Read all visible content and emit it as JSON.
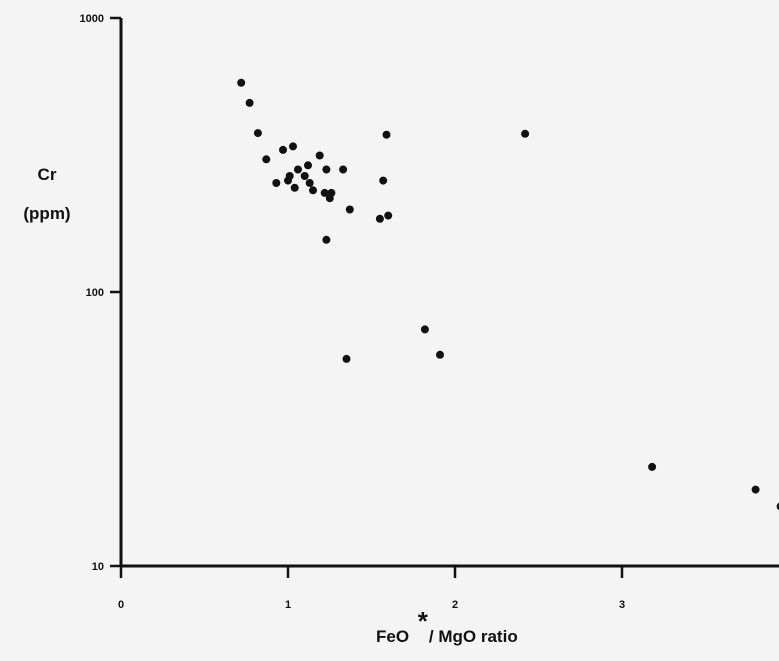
{
  "chart_data": {
    "type": "scatter",
    "ylabel_line1": "Cr",
    "ylabel_line2": "(ppm)",
    "xlabel_pre": "FeO",
    "xlabel_star": "*",
    "xlabel_post": "/ MgO ratio",
    "x_scale": "linear",
    "y_scale": "log",
    "xlim": [
      0,
      3.95
    ],
    "ylim": [
      10,
      1000
    ],
    "x_ticks": [
      {
        "value": 0,
        "label": "0"
      },
      {
        "value": 1,
        "label": "1"
      },
      {
        "value": 2,
        "label": "2"
      },
      {
        "value": 3,
        "label": "3"
      }
    ],
    "y_ticks": [
      {
        "value": 1000,
        "label": "1000"
      },
      {
        "value": 100,
        "label": "100"
      },
      {
        "value": 10,
        "label": "10"
      }
    ],
    "grid": false,
    "legend": "none",
    "marker_color": "#111111",
    "points": [
      {
        "x": 0.72,
        "y": 580
      },
      {
        "x": 0.77,
        "y": 490
      },
      {
        "x": 0.82,
        "y": 380
      },
      {
        "x": 0.87,
        "y": 305
      },
      {
        "x": 0.93,
        "y": 250
      },
      {
        "x": 0.97,
        "y": 330
      },
      {
        "x": 1.0,
        "y": 255
      },
      {
        "x": 1.01,
        "y": 265
      },
      {
        "x": 1.03,
        "y": 340
      },
      {
        "x": 1.04,
        "y": 240
      },
      {
        "x": 1.06,
        "y": 280
      },
      {
        "x": 1.1,
        "y": 265
      },
      {
        "x": 1.12,
        "y": 290
      },
      {
        "x": 1.13,
        "y": 250
      },
      {
        "x": 1.15,
        "y": 235
      },
      {
        "x": 1.19,
        "y": 315
      },
      {
        "x": 1.22,
        "y": 230
      },
      {
        "x": 1.23,
        "y": 280
      },
      {
        "x": 1.23,
        "y": 155
      },
      {
        "x": 1.25,
        "y": 220
      },
      {
        "x": 1.26,
        "y": 230
      },
      {
        "x": 1.33,
        "y": 280
      },
      {
        "x": 1.37,
        "y": 200
      },
      {
        "x": 1.35,
        "y": 57
      },
      {
        "x": 1.55,
        "y": 185
      },
      {
        "x": 1.57,
        "y": 255
      },
      {
        "x": 1.59,
        "y": 375
      },
      {
        "x": 1.6,
        "y": 190
      },
      {
        "x": 1.82,
        "y": 73
      },
      {
        "x": 1.91,
        "y": 59
      },
      {
        "x": 2.42,
        "y": 378
      },
      {
        "x": 3.18,
        "y": 23
      },
      {
        "x": 3.8,
        "y": 19
      },
      {
        "x": 3.95,
        "y": 16.5
      }
    ]
  }
}
